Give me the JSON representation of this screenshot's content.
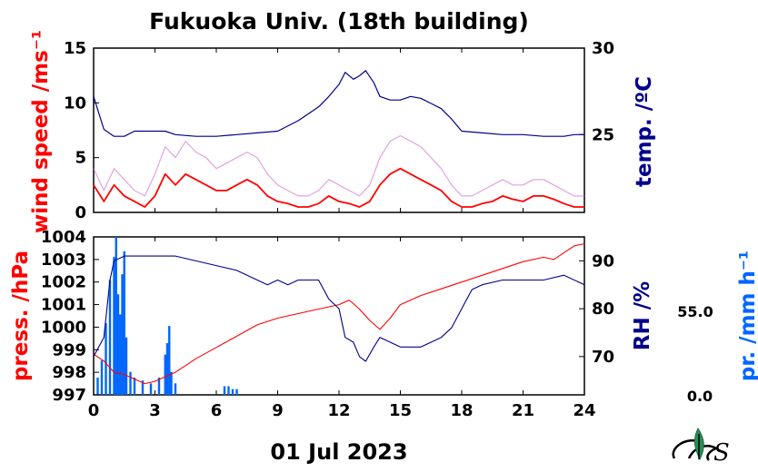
{
  "title": "Fukuoka Univ. (18th building)",
  "date_label": "01 Jul 2023",
  "colors": {
    "wind_avg": "#ff0000",
    "wind_gust": "#cc66cc",
    "temp": "#00008b",
    "press": "#ff0000",
    "rh": "#00008b",
    "precip": "#0066ff",
    "logo": "#2e8b57"
  },
  "chart_data": [
    {
      "type": "line",
      "panel": "top",
      "ylabel_left": "wind speed /ms⁻¹",
      "ylabel_right": "temp. /ºC",
      "x_ticks": [
        0,
        3,
        6,
        9,
        12,
        15,
        18,
        21,
        24
      ],
      "ylim_left": [
        0,
        15
      ],
      "yticks_left": [
        0,
        5,
        10,
        15
      ],
      "ylim_right": [
        20.5,
        30
      ],
      "yticks_right": [
        25,
        30
      ],
      "series": [
        {
          "axis": "left",
          "x": [
            0,
            0.5,
            1,
            1.5,
            2,
            2.5,
            3,
            3.5,
            4,
            4.5,
            5,
            5.5,
            6,
            6.5,
            7,
            7.5,
            8,
            8.5,
            9,
            9.5,
            10,
            10.5,
            11,
            11.5,
            12,
            12.5,
            13,
            13.5,
            14,
            14.5,
            15,
            15.5,
            16,
            16.5,
            17,
            17.5,
            18,
            18.5,
            19,
            19.5,
            20,
            20.5,
            21,
            21.5,
            22,
            22.5,
            23,
            23.5,
            24
          ],
          "values": [
            2.5,
            1.0,
            2.5,
            1.5,
            1.0,
            0.5,
            1.5,
            3.5,
            2.5,
            3.5,
            3.0,
            2.5,
            2.0,
            2.0,
            2.5,
            3.0,
            2.5,
            1.5,
            1.0,
            0.8,
            0.5,
            0.5,
            0.8,
            1.5,
            1.0,
            0.8,
            0.5,
            1.0,
            2.5,
            3.5,
            4.0,
            3.5,
            3.0,
            2.5,
            2.0,
            1.0,
            0.5,
            0.5,
            0.8,
            1.0,
            1.5,
            1.2,
            1.0,
            1.5,
            1.5,
            1.2,
            0.8,
            0.5,
            0.5
          ]
        },
        {
          "axis": "left",
          "x": [
            0,
            0.5,
            1,
            1.5,
            2,
            2.5,
            3,
            3.5,
            4,
            4.5,
            5,
            5.5,
            6,
            6.5,
            7,
            7.5,
            8,
            8.5,
            9,
            9.5,
            10,
            10.5,
            11,
            11.5,
            12,
            12.5,
            13,
            13.5,
            14,
            14.5,
            15,
            15.5,
            16,
            16.5,
            17,
            17.5,
            18,
            18.5,
            19,
            19.5,
            20,
            20.5,
            21,
            21.5,
            22,
            22.5,
            23,
            23.5,
            24
          ],
          "values": [
            4.0,
            2.0,
            4.0,
            3.0,
            2.0,
            1.5,
            3.5,
            6.0,
            5.0,
            6.5,
            5.5,
            5.0,
            4.0,
            4.5,
            5.0,
            5.5,
            5.0,
            3.5,
            2.5,
            2.0,
            1.5,
            1.5,
            2.0,
            3.0,
            2.5,
            2.0,
            1.5,
            2.5,
            5.0,
            6.5,
            7.0,
            6.5,
            6.0,
            5.0,
            4.0,
            2.5,
            1.5,
            1.5,
            2.0,
            2.5,
            3.0,
            2.5,
            2.5,
            3.0,
            3.0,
            2.5,
            2.0,
            1.5,
            1.5
          ]
        },
        {
          "axis": "right",
          "x": [
            0,
            0.5,
            1,
            1.5,
            2,
            2.5,
            3,
            3.5,
            4,
            5,
            6,
            7,
            8,
            9,
            10,
            10.5,
            11,
            11.5,
            12,
            12.3,
            12.7,
            13,
            13.3,
            13.7,
            14,
            14.5,
            15,
            15.5,
            16,
            16.5,
            17,
            17.5,
            18,
            19,
            20,
            21,
            22,
            23,
            23.5,
            24
          ],
          "values": [
            27.2,
            25.3,
            24.9,
            24.9,
            25.2,
            25.2,
            25.2,
            25.2,
            25.0,
            24.9,
            24.9,
            25.0,
            25.1,
            25.2,
            25.8,
            26.2,
            26.6,
            27.2,
            27.9,
            28.6,
            28.2,
            28.4,
            28.7,
            28.0,
            27.2,
            27.0,
            27.0,
            27.2,
            27.1,
            26.8,
            26.5,
            25.9,
            25.2,
            25.1,
            25.0,
            25.0,
            24.9,
            24.9,
            25.0,
            25.0
          ]
        }
      ]
    },
    {
      "type": "line",
      "panel": "bottom",
      "ylabel_left": "press. /hPa",
      "ylabel_right": "RH /%",
      "ylabel_far_right": "pr. /mm h⁻¹",
      "precip_ticks": [
        "55.0",
        "0.0"
      ],
      "precip_max": 55.0,
      "x_ticks": [
        0,
        3,
        6,
        9,
        12,
        15,
        18,
        21,
        24
      ],
      "ylim_left": [
        997,
        1004
      ],
      "yticks_left": [
        997,
        998,
        999,
        1000,
        1001,
        1002,
        1003,
        1004
      ],
      "ylim_right": [
        62,
        95
      ],
      "yticks_right": [
        70,
        80,
        90
      ],
      "series": [
        {
          "axis": "left",
          "x": [
            0,
            0.5,
            1,
            1.5,
            2,
            2.5,
            3,
            3.5,
            4,
            4.5,
            5,
            6,
            7,
            8,
            9,
            10,
            11,
            12,
            12.5,
            13,
            13.5,
            14,
            14.5,
            15,
            16,
            17,
            18,
            19,
            20,
            21,
            22,
            22.5,
            23,
            23.5,
            24
          ],
          "values": [
            998.8,
            998.5,
            998.0,
            997.9,
            997.7,
            997.5,
            997.6,
            997.8,
            998.0,
            998.3,
            998.6,
            999.1,
            999.6,
            1000.1,
            1000.4,
            1000.6,
            1000.8,
            1001.0,
            1001.2,
            1000.8,
            1000.3,
            999.9,
            1000.4,
            1001.0,
            1001.4,
            1001.7,
            1002.0,
            1002.3,
            1002.6,
            1002.9,
            1003.1,
            1003.0,
            1003.3,
            1003.6,
            1003.7
          ]
        },
        {
          "axis": "right",
          "x": [
            0,
            0.5,
            0.8,
            1,
            1.5,
            2,
            2.5,
            3,
            3.5,
            4,
            5,
            6,
            7,
            8,
            8.5,
            9,
            9.5,
            10,
            10.5,
            11,
            11.5,
            12,
            12.3,
            12.7,
            13,
            13.3,
            13.7,
            14,
            14.5,
            15,
            15.5,
            16,
            16.5,
            17,
            17.5,
            18,
            18.5,
            19,
            20,
            21,
            22,
            23,
            24
          ],
          "values": [
            70,
            74,
            86,
            90,
            91,
            91,
            91,
            91,
            91,
            91,
            90,
            89,
            88,
            86,
            85,
            86,
            85,
            86,
            86,
            86,
            82,
            80,
            74,
            73,
            70,
            69,
            72,
            74,
            73,
            72,
            72,
            72,
            73,
            74,
            76,
            80,
            84,
            85,
            86,
            86,
            86,
            87,
            85
          ]
        }
      ],
      "precip_bars": {
        "x": [
          0.2,
          0.4,
          0.6,
          0.8,
          1.0,
          1.1,
          1.2,
          1.3,
          1.4,
          1.5,
          1.6,
          1.8,
          2.0,
          2.4,
          2.8,
          3.2,
          3.5,
          3.6,
          3.7,
          3.8,
          4.0,
          6.4,
          6.6,
          6.8,
          7.0
        ],
        "values": [
          6,
          12,
          25,
          40,
          48,
          55,
          35,
          28,
          42,
          50,
          20,
          8,
          6,
          5,
          4,
          6,
          14,
          18,
          24,
          8,
          4,
          3,
          3,
          2,
          2
        ]
      }
    }
  ]
}
